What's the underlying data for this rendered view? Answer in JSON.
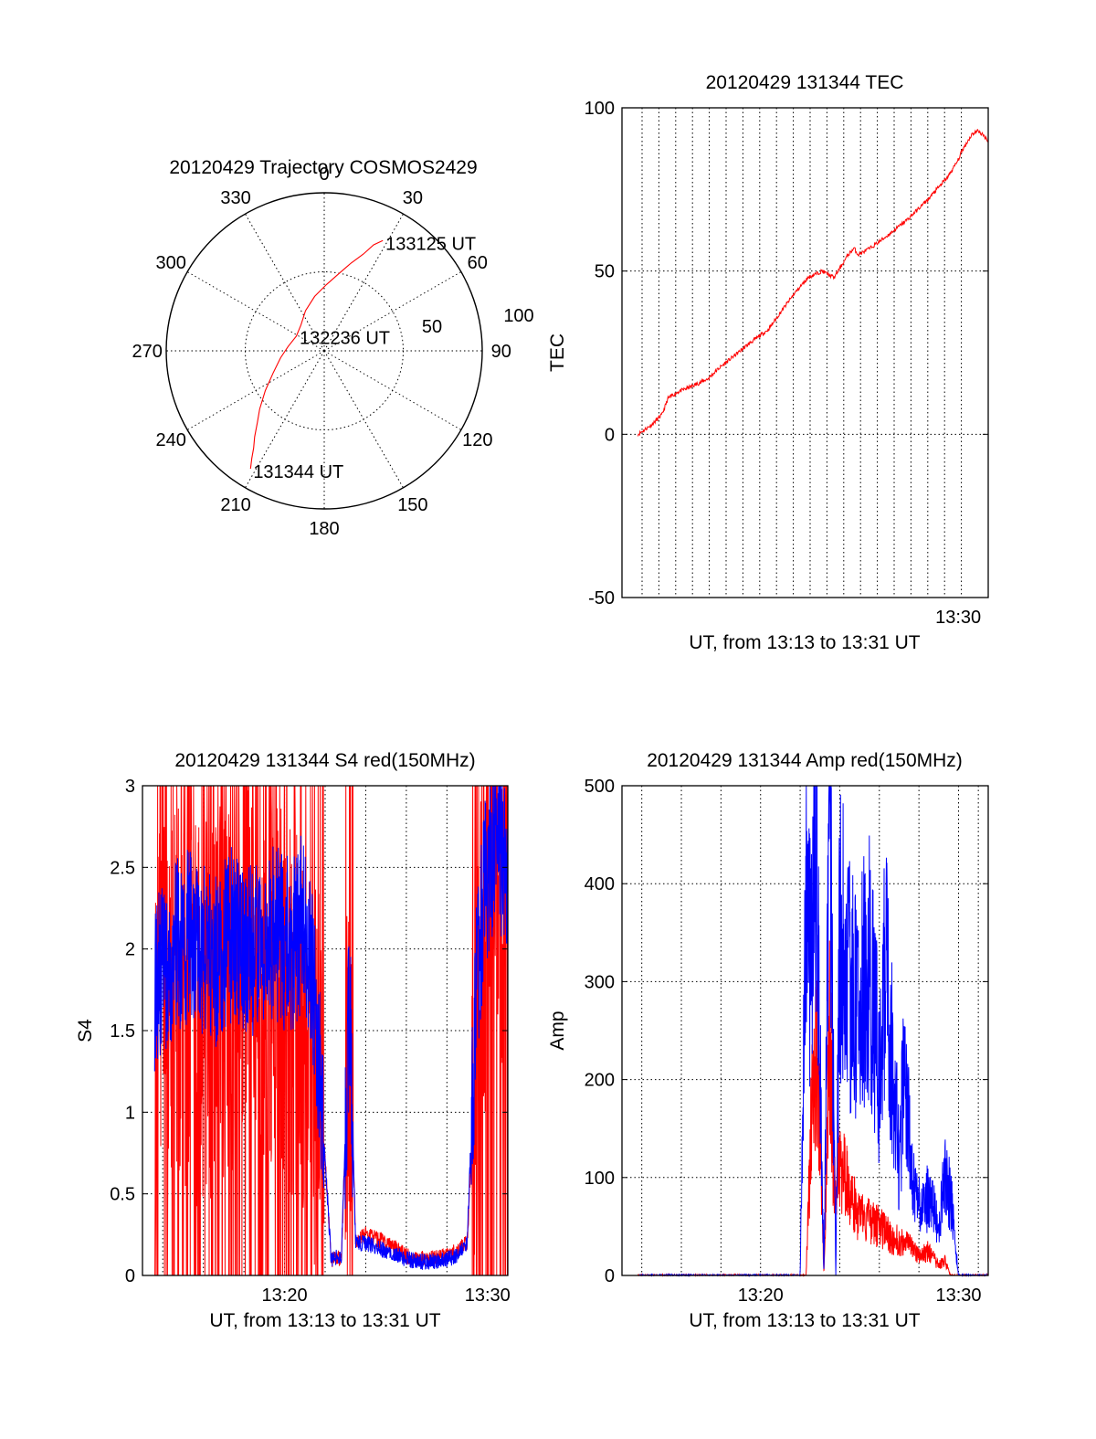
{
  "colors": {
    "red": "#ff0000",
    "blue": "#0000ff",
    "axis": "#000000"
  },
  "chart_data": [
    {
      "id": "trajectory",
      "type": "polar",
      "title": "20120429 Trajectory COSMOS2429",
      "azimuth_labels": [
        "0",
        "30",
        "60",
        "90",
        "120",
        "150",
        "180",
        "210",
        "240",
        "270",
        "300",
        "330"
      ],
      "radial_labels": [
        "50",
        "100"
      ],
      "rmax": 100,
      "grid": true,
      "series": [
        {
          "color": "red",
          "points": [
            [
              212,
              88
            ],
            [
              214,
              82
            ],
            [
              216,
              76
            ],
            [
              219,
              70
            ],
            [
              223,
              62
            ],
            [
              228,
              55
            ],
            [
              236,
              45
            ],
            [
              247,
              35
            ],
            [
              261,
              28
            ],
            [
              277,
              23
            ],
            [
              298,
              20
            ],
            [
              318,
              22
            ],
            [
              335,
              28
            ],
            [
              350,
              35
            ],
            [
              2,
              42
            ],
            [
              11,
              50
            ],
            [
              17,
              58
            ],
            [
              22,
              66
            ],
            [
              25,
              74
            ],
            [
              28,
              79
            ]
          ]
        }
      ],
      "annotations": [
        {
          "text": "133125 UT",
          "az": 28,
          "r": 79
        },
        {
          "text": "132236 UT",
          "az": 300,
          "r": 20
        },
        {
          "text": "131344 UT",
          "az": 212,
          "r": 88
        }
      ]
    },
    {
      "id": "tec",
      "type": "line",
      "title": "20120429 131344 TEC",
      "xlabel": "UT, from 13:13 to 13:31 UT",
      "ylabel": "TEC",
      "xlim": [
        13.2,
        31.5
      ],
      "ylim": [
        -50,
        100
      ],
      "yticks": [
        -50,
        0,
        50,
        100
      ],
      "xtick_labels": [
        {
          "x": 30,
          "label": "13:30"
        }
      ],
      "grid": true,
      "series": [
        {
          "color": "red",
          "x": [
            14.0,
            14.7,
            15.2,
            15.5,
            16.0,
            16.8,
            17.5,
            18.0,
            18.8,
            19.6,
            20.5,
            21.2,
            21.8,
            22.5,
            23.2,
            23.8,
            24.5,
            24.8,
            25.0,
            25.6,
            26.5,
            27.5,
            28.5,
            29.5,
            30.0,
            30.2,
            30.7,
            31.0,
            31.5
          ],
          "y": [
            0,
            3,
            6,
            11,
            13,
            15,
            17,
            20,
            24,
            28,
            32,
            38,
            43,
            48,
            50,
            48,
            55,
            57,
            55,
            57,
            61,
            66,
            72,
            79,
            84,
            87,
            92,
            93,
            90
          ]
        }
      ]
    },
    {
      "id": "s4",
      "type": "line",
      "title": "20120429 131344 S4 red(150MHz)",
      "xlabel": "UT, from 13:13 to 13:31 UT",
      "ylabel": "S4",
      "xlim": [
        13.0,
        31.0
      ],
      "ylim": [
        0,
        3
      ],
      "yticks": [
        0,
        0.5,
        1,
        1.5,
        2,
        2.5,
        3
      ],
      "ytick_labels": [
        "0",
        "0.5",
        "1",
        "1.5",
        "2",
        "2.5",
        "3"
      ],
      "xtick_labels": [
        {
          "x": 20,
          "label": "13:20"
        },
        {
          "x": 30,
          "label": "13:30"
        }
      ],
      "grid": true,
      "series": [
        {
          "color": "red",
          "x": [
            13.6,
            15.0,
            16.0,
            17.0,
            18.0,
            19.0,
            19.8,
            20.4,
            21.0,
            21.8,
            22.3,
            22.8,
            23.2,
            23.5,
            24.0,
            25.0,
            26.0,
            27.0,
            28.0,
            28.5,
            29.0,
            29.5,
            30.0,
            30.5,
            31.0
          ],
          "y": [
            1.5,
            1.7,
            1.6,
            1.7,
            1.8,
            1.7,
            1.7,
            1.6,
            1.5,
            1.1,
            0.1,
            0.1,
            1.6,
            0.2,
            0.25,
            0.2,
            0.12,
            0.1,
            0.12,
            0.15,
            0.2,
            1.5,
            2.3,
            2.6,
            2.4
          ]
        },
        {
          "color": "blue",
          "x": [
            13.6,
            14.5,
            15.5,
            16.5,
            17.5,
            18.5,
            19.5,
            20.3,
            21.0,
            21.5,
            22.3,
            22.8,
            23.2,
            23.5,
            24.0,
            25.0,
            26.0,
            27.0,
            28.0,
            28.5,
            29.0,
            29.5,
            30.0,
            30.5,
            31.0
          ],
          "y": [
            1.8,
            2.0,
            2.1,
            1.9,
            2.1,
            2.0,
            2.1,
            2.0,
            2.2,
            1.7,
            0.1,
            0.12,
            1.7,
            0.2,
            0.2,
            0.15,
            0.1,
            0.08,
            0.1,
            0.12,
            0.2,
            1.9,
            2.5,
            2.7,
            2.4
          ]
        }
      ]
    },
    {
      "id": "amp",
      "type": "line",
      "title": "20120429 131344 Amp red(150MHz)",
      "xlabel": "UT, from 13:13 to 13:31 UT",
      "ylabel": "Amp",
      "xlim": [
        13.0,
        31.5
      ],
      "ylim": [
        0,
        500
      ],
      "yticks": [
        0,
        100,
        200,
        300,
        400,
        500
      ],
      "xtick_labels": [
        {
          "x": 20,
          "label": "13:20"
        },
        {
          "x": 30,
          "label": "13:30"
        }
      ],
      "grid": true,
      "series": [
        {
          "color": "red",
          "x": [
            13.8,
            20.0,
            22.3,
            22.6,
            22.8,
            23.0,
            23.2,
            23.5,
            23.7,
            24.0,
            24.5,
            25.0,
            25.5,
            26.0,
            26.5,
            27.0,
            27.5,
            28.0,
            28.5,
            29.0,
            29.3,
            29.6,
            30.0,
            31.5
          ],
          "y": [
            0,
            0,
            0,
            180,
            220,
            180,
            0,
            250,
            100,
            120,
            80,
            60,
            55,
            50,
            40,
            35,
            30,
            20,
            25,
            10,
            15,
            0,
            0,
            0
          ]
        },
        {
          "color": "blue",
          "x": [
            13.8,
            20.0,
            22.0,
            22.3,
            22.5,
            22.8,
            23.0,
            23.2,
            23.5,
            23.8,
            24.0,
            24.5,
            25.0,
            25.5,
            26.0,
            26.3,
            26.8,
            27.0,
            27.3,
            27.6,
            28.0,
            28.5,
            29.0,
            29.3,
            29.6,
            30.0,
            31.5
          ],
          "y": [
            0,
            0,
            0,
            420,
            330,
            460,
            250,
            0,
            470,
            0,
            350,
            300,
            270,
            330,
            200,
            320,
            180,
            110,
            230,
            100,
            70,
            80,
            50,
            100,
            80,
            0,
            0
          ]
        }
      ]
    }
  ]
}
